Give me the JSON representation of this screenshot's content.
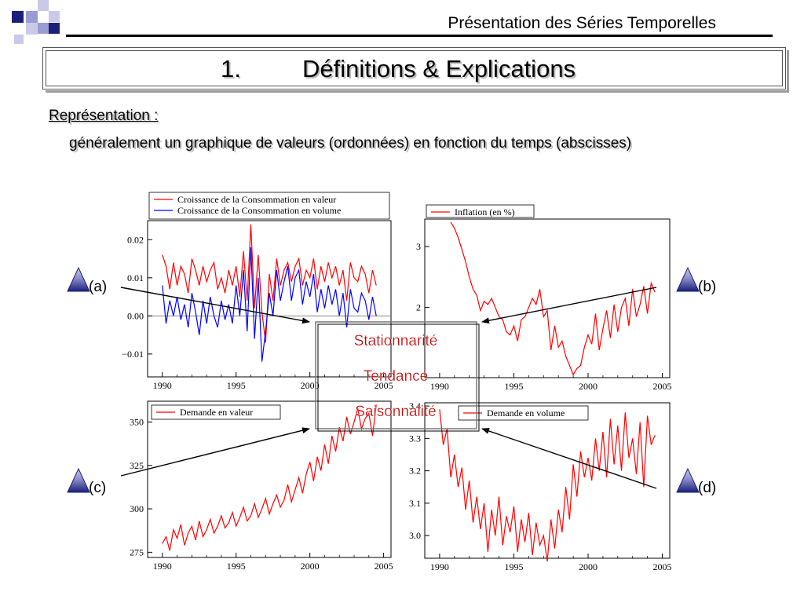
{
  "header": {
    "title": "Présentation des Séries Temporelles"
  },
  "slide": {
    "number": "1.",
    "title": "Définitions & Explications",
    "section_label": "Représentation :",
    "section_desc": "généralement un graphique de valeurs (ordonnées) en fonction du temps (abscisses)"
  },
  "labels": {
    "a": "(a)",
    "b": "(b)",
    "c": "(c)",
    "d": "(d)"
  },
  "center_box": {
    "items": [
      "Stationnarité",
      "Tendance",
      "Saisonnalité"
    ]
  },
  "colors": {
    "red": "#ff0000",
    "blue": "#0000ff",
    "dark_red": "#c00000",
    "icon_dark": "#1a1f7a"
  },
  "icons": [
    "pyramid-icon"
  ],
  "chart_data": [
    {
      "id": "a",
      "type": "line",
      "xlim": [
        1989,
        2005.5
      ],
      "ylim": [
        -0.016,
        0.025
      ],
      "xticks": [
        1990,
        1995,
        2000,
        2005
      ],
      "yticks": [
        -0.01,
        0.0,
        0.01,
        0.02
      ],
      "ytick_labels": [
        "−0.01",
        "0.00",
        "0.01",
        "0.02"
      ],
      "zero_line": true,
      "legend_placement": "top",
      "series": [
        {
          "name": "Croissance de la Consommation en valeur",
          "color": "#ff0000",
          "x": [
            1990.0,
            1990.25,
            1990.5,
            1990.75,
            1991.0,
            1991.25,
            1991.5,
            1991.75,
            1992.0,
            1992.25,
            1992.5,
            1992.75,
            1993.0,
            1993.25,
            1993.5,
            1993.75,
            1994.0,
            1994.25,
            1994.5,
            1994.75,
            1995.0,
            1995.25,
            1995.5,
            1995.75,
            1996.0,
            1996.25,
            1996.5,
            1996.75,
            1997.0,
            1997.25,
            1997.5,
            1997.75,
            1998.0,
            1998.25,
            1998.5,
            1998.75,
            1999.0,
            1999.25,
            1999.5,
            1999.75,
            2000.0,
            2000.25,
            2000.5,
            2000.75,
            2001.0,
            2001.25,
            2001.5,
            2001.75,
            2002.0,
            2002.25,
            2002.5,
            2002.75,
            2003.0,
            2003.25,
            2003.5,
            2003.75,
            2004.0,
            2004.25,
            2004.5
          ],
          "y": [
            0.016,
            0.013,
            0.007,
            0.014,
            0.008,
            0.013,
            0.011,
            0.006,
            0.015,
            0.012,
            0.008,
            0.013,
            0.009,
            0.012,
            0.014,
            0.007,
            0.01,
            0.006,
            0.012,
            0.008,
            0.013,
            0.005,
            0.017,
            0.004,
            0.024,
            0.002,
            0.016,
            0.001,
            -0.007,
            0.011,
            0.004,
            0.015,
            0.008,
            0.012,
            0.014,
            0.009,
            0.013,
            0.015,
            0.008,
            0.012,
            0.01,
            0.015,
            0.007,
            0.013,
            0.009,
            0.014,
            0.01,
            0.013,
            0.008,
            0.012,
            0.004,
            0.014,
            0.01,
            0.009,
            0.013,
            0.011,
            0.006,
            0.012,
            0.008
          ]
        },
        {
          "name": "Croissance de la Consommation en volume",
          "color": "#0000ff",
          "x": [
            1990.0,
            1990.25,
            1990.5,
            1990.75,
            1991.0,
            1991.25,
            1991.5,
            1991.75,
            1992.0,
            1992.25,
            1992.5,
            1992.75,
            1993.0,
            1993.25,
            1993.5,
            1993.75,
            1994.0,
            1994.25,
            1994.5,
            1994.75,
            1995.0,
            1995.25,
            1995.5,
            1995.75,
            1996.0,
            1996.25,
            1996.5,
            1996.75,
            1997.0,
            1997.25,
            1997.5,
            1997.75,
            1998.0,
            1998.25,
            1998.5,
            1998.75,
            1999.0,
            1999.25,
            1999.5,
            1999.75,
            2000.0,
            2000.25,
            2000.5,
            2000.75,
            2001.0,
            2001.25,
            2001.5,
            2001.75,
            2002.0,
            2002.25,
            2002.5,
            2002.75,
            2003.0,
            2003.25,
            2003.5,
            2003.75,
            2004.0,
            2004.25,
            2004.5
          ],
          "y": [
            0.008,
            -0.002,
            0.004,
            0.0,
            0.005,
            -0.001,
            0.003,
            -0.003,
            0.006,
            0.001,
            -0.005,
            0.004,
            -0.002,
            0.005,
            0.0,
            -0.003,
            0.004,
            -0.001,
            0.003,
            -0.002,
            0.008,
            0.0,
            0.012,
            -0.004,
            0.018,
            -0.006,
            0.01,
            -0.012,
            -0.004,
            0.006,
            0.0,
            0.012,
            0.004,
            0.009,
            0.013,
            0.004,
            0.01,
            0.012,
            0.003,
            0.009,
            0.005,
            0.011,
            0.001,
            0.007,
            0.002,
            0.008,
            0.003,
            0.007,
            0.0,
            0.006,
            -0.003,
            0.007,
            0.002,
            0.001,
            0.006,
            0.004,
            -0.001,
            0.005,
            0.0
          ]
        }
      ]
    },
    {
      "id": "b",
      "type": "line",
      "xlim": [
        1989,
        2005.5
      ],
      "ylim": [
        0.85,
        3.45
      ],
      "xticks": [
        1990,
        1995,
        2000,
        2005
      ],
      "yticks": [
        2,
        3
      ],
      "ytick_labels": [
        "2",
        "3"
      ],
      "legend_placement": "top-left",
      "series": [
        {
          "name": "Inflation (en %)",
          "color": "#ff0000",
          "x": [
            1990.75,
            1991.0,
            1991.25,
            1991.5,
            1991.75,
            1992.0,
            1992.25,
            1992.5,
            1992.75,
            1993.0,
            1993.25,
            1993.5,
            1993.75,
            1994.0,
            1994.25,
            1994.5,
            1994.75,
            1995.0,
            1995.25,
            1995.5,
            1995.75,
            1996.0,
            1996.25,
            1996.5,
            1996.75,
            1997.0,
            1997.25,
            1997.5,
            1997.75,
            1998.0,
            1998.25,
            1998.5,
            1998.75,
            1999.0,
            1999.25,
            1999.5,
            1999.75,
            2000.0,
            2000.25,
            2000.5,
            2000.75,
            2001.0,
            2001.25,
            2001.5,
            2001.75,
            2002.0,
            2002.25,
            2002.5,
            2002.75,
            2003.0,
            2003.25,
            2003.5,
            2003.75,
            2004.0,
            2004.25,
            2004.5
          ],
          "y": [
            3.4,
            3.3,
            3.15,
            2.95,
            2.75,
            2.5,
            2.3,
            2.2,
            1.95,
            2.1,
            2.05,
            2.15,
            2.0,
            1.85,
            1.8,
            1.6,
            1.55,
            1.7,
            1.45,
            1.8,
            1.85,
            2.0,
            2.15,
            2.05,
            2.3,
            1.85,
            1.95,
            1.3,
            1.7,
            1.35,
            1.45,
            1.2,
            1.05,
            0.9,
            1.0,
            1.05,
            1.35,
            1.55,
            1.4,
            1.9,
            1.3,
            1.65,
            1.95,
            1.5,
            2.05,
            1.6,
            2.0,
            2.15,
            1.7,
            2.3,
            1.85,
            2.05,
            2.35,
            1.9,
            2.4,
            2.25
          ]
        }
      ]
    },
    {
      "id": "c",
      "type": "line",
      "xlim": [
        1989,
        2005.5
      ],
      "ylim": [
        272,
        362
      ],
      "xticks": [
        1990,
        1995,
        2000,
        2005
      ],
      "yticks": [
        275,
        300,
        325,
        350
      ],
      "ytick_labels": [
        "275",
        "300",
        "325",
        "350"
      ],
      "legend_placement": "top-left",
      "series": [
        {
          "name": "Demande en valeur",
          "color": "#ff0000",
          "x": [
            1990.0,
            1990.25,
            1990.5,
            1990.75,
            1991.0,
            1991.25,
            1991.5,
            1991.75,
            1992.0,
            1992.25,
            1992.5,
            1992.75,
            1993.0,
            1993.25,
            1993.5,
            1993.75,
            1994.0,
            1994.25,
            1994.5,
            1994.75,
            1995.0,
            1995.25,
            1995.5,
            1995.75,
            1996.0,
            1996.25,
            1996.5,
            1996.75,
            1997.0,
            1997.25,
            1997.5,
            1997.75,
            1998.0,
            1998.25,
            1998.5,
            1998.75,
            1999.0,
            1999.25,
            1999.5,
            1999.75,
            2000.0,
            2000.25,
            2000.5,
            2000.75,
            2001.0,
            2001.25,
            2001.5,
            2001.75,
            2002.0,
            2002.25,
            2002.5,
            2002.75,
            2003.0,
            2003.25,
            2003.5,
            2003.75,
            2004.0,
            2004.25,
            2004.5
          ],
          "y": [
            280,
            284,
            276,
            288,
            283,
            291,
            279,
            286,
            290,
            282,
            293,
            284,
            288,
            294,
            286,
            290,
            296,
            289,
            292,
            298,
            290,
            295,
            301,
            293,
            296,
            303,
            295,
            300,
            306,
            297,
            303,
            308,
            301,
            305,
            314,
            304,
            311,
            318,
            309,
            320,
            327,
            316,
            330,
            322,
            337,
            326,
            342,
            333,
            347,
            339,
            353,
            343,
            350,
            358,
            346,
            352,
            355,
            342,
            360
          ]
        }
      ]
    },
    {
      "id": "d",
      "type": "line",
      "xlim": [
        1989,
        2005.5
      ],
      "ylim": [
        2.93,
        3.41
      ],
      "xticks": [
        1990,
        1995,
        2000,
        2005
      ],
      "yticks": [
        3.0,
        3.1,
        3.2,
        3.3,
        3.4
      ],
      "ytick_labels": [
        "3.0",
        "3.1",
        "3.2",
        "3.3",
        "3.4"
      ],
      "legend_placement": "top-right",
      "series": [
        {
          "name": "Demande en volume",
          "color": "#ff0000",
          "x": [
            1990.0,
            1990.25,
            1990.5,
            1990.75,
            1991.0,
            1991.25,
            1991.5,
            1991.75,
            1992.0,
            1992.25,
            1992.5,
            1992.75,
            1993.0,
            1993.25,
            1993.5,
            1993.75,
            1994.0,
            1994.25,
            1994.5,
            1994.75,
            1995.0,
            1995.25,
            1995.5,
            1995.75,
            1996.0,
            1996.25,
            1996.5,
            1996.75,
            1997.0,
            1997.25,
            1997.5,
            1997.75,
            1998.0,
            1998.25,
            1998.5,
            1998.75,
            1999.0,
            1999.25,
            1999.5,
            1999.75,
            2000.0,
            2000.25,
            2000.5,
            2000.75,
            2001.0,
            2001.25,
            2001.5,
            2001.75,
            2002.0,
            2002.25,
            2002.5,
            2002.75,
            2003.0,
            2003.25,
            2003.5,
            2003.75,
            2004.0,
            2004.25,
            2004.5
          ],
          "y": [
            3.39,
            3.28,
            3.33,
            3.18,
            3.25,
            3.15,
            3.21,
            3.08,
            3.17,
            3.04,
            3.12,
            3.02,
            3.1,
            2.95,
            3.08,
            3.0,
            3.12,
            2.97,
            3.06,
            3.01,
            3.09,
            2.95,
            3.05,
            2.98,
            3.07,
            2.94,
            3.04,
            2.97,
            3.0,
            2.92,
            3.05,
            2.96,
            3.08,
            3.01,
            3.15,
            3.05,
            3.22,
            3.12,
            3.26,
            3.18,
            3.24,
            3.17,
            3.3,
            3.2,
            3.32,
            3.18,
            3.36,
            3.22,
            3.34,
            3.2,
            3.38,
            3.24,
            3.3,
            3.19,
            3.35,
            3.15,
            3.37,
            3.28,
            3.31
          ]
        }
      ]
    }
  ]
}
